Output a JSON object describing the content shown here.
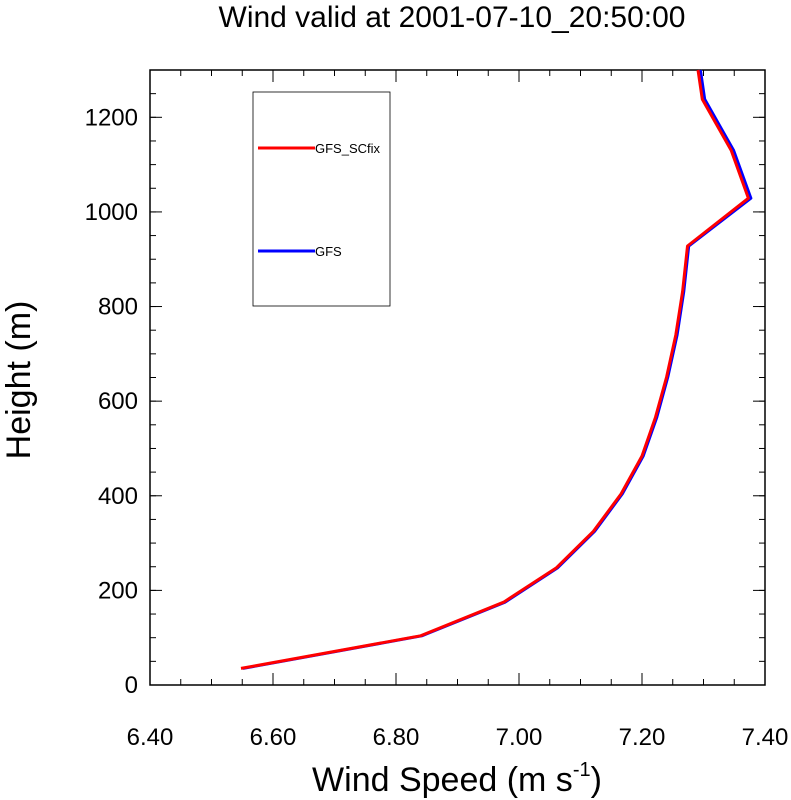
{
  "chart_data": {
    "type": "line",
    "title": "Wind valid at 2001-07-10_20:50:00",
    "xlabel": "Wind Speed (m s",
    "xlabel_sup": "-1",
    "xlabel_close": ")",
    "ylabel": "Height (m)",
    "xlim": [
      6.4,
      7.4
    ],
    "ylim": [
      0,
      1300
    ],
    "xticks": [
      "6.40",
      "6.60",
      "6.80",
      "7.00",
      "7.20",
      "7.40"
    ],
    "yticks": [
      "0",
      "200",
      "400",
      "600",
      "800",
      "1000",
      "1200"
    ],
    "xtick_values": [
      6.4,
      6.6,
      6.8,
      7.0,
      7.2,
      7.4
    ],
    "ytick_values": [
      0,
      200,
      400,
      600,
      800,
      1000,
      1200
    ],
    "grid": false,
    "legend_position": "top-left",
    "series": [
      {
        "name": "GFS",
        "color": "#0000ff",
        "points": [
          [
            6.551,
            35
          ],
          [
            6.842,
            104
          ],
          [
            6.977,
            175
          ],
          [
            7.063,
            248
          ],
          [
            7.123,
            325
          ],
          [
            7.168,
            404
          ],
          [
            7.202,
            484
          ],
          [
            7.224,
            566
          ],
          [
            7.242,
            651
          ],
          [
            7.257,
            740
          ],
          [
            7.268,
            832
          ],
          [
            7.276,
            928
          ],
          [
            7.377,
            1029
          ],
          [
            7.349,
            1130
          ],
          [
            7.302,
            1238
          ],
          [
            7.295,
            1300
          ]
        ]
      },
      {
        "name": "GFS_SCfix",
        "color": "#ff0000",
        "points": [
          [
            6.548,
            35
          ],
          [
            6.84,
            104
          ],
          [
            6.975,
            175
          ],
          [
            7.061,
            248
          ],
          [
            7.121,
            325
          ],
          [
            7.166,
            404
          ],
          [
            7.2,
            484
          ],
          [
            7.222,
            566
          ],
          [
            7.24,
            651
          ],
          [
            7.255,
            740
          ],
          [
            7.266,
            832
          ],
          [
            7.274,
            928
          ],
          [
            7.373,
            1029
          ],
          [
            7.345,
            1130
          ],
          [
            7.298,
            1238
          ],
          [
            7.291,
            1300
          ]
        ]
      }
    ]
  }
}
